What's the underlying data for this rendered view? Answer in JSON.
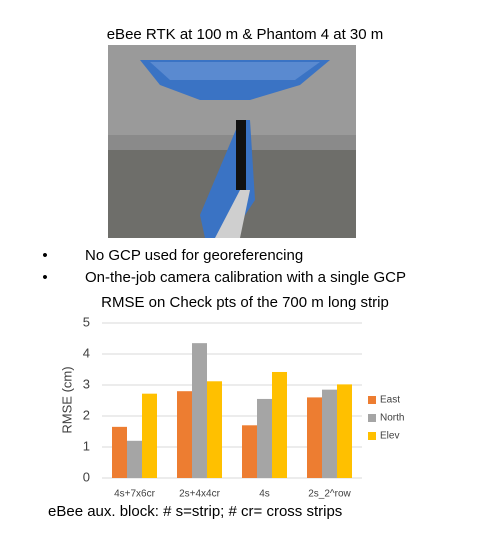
{
  "title": "eBee RTK at 100 m & Phantom 4 at 30 m",
  "bullets": [
    "No GCP used for georeferencing",
    "On-the-job camera calibration with a single GCP"
  ],
  "caption": "eBee aux. block:  # s=strip; # cr= cross strips",
  "chart_data": {
    "type": "bar",
    "title": "RMSE on Check pts of the 700 m long strip",
    "y_label": "RMSE (cm)",
    "categories": [
      "4s+7x6cr",
      "2s+4x4cr",
      "4s",
      "2s_2^row"
    ],
    "series": [
      {
        "name": "East",
        "color": "#ed7d31",
        "values": [
          1.65,
          2.8,
          1.7,
          2.6
        ]
      },
      {
        "name": "North",
        "color": "#a5a5a5",
        "values": [
          1.2,
          4.35,
          2.55,
          2.85
        ]
      },
      {
        "name": "Elev",
        "color": "#ffc000",
        "values": [
          2.72,
          3.12,
          3.42,
          3.02
        ]
      }
    ],
    "ylim": [
      0,
      5
    ],
    "yticks": [
      0,
      1,
      2,
      3,
      4,
      5
    ],
    "grid": true,
    "legend": "right"
  }
}
